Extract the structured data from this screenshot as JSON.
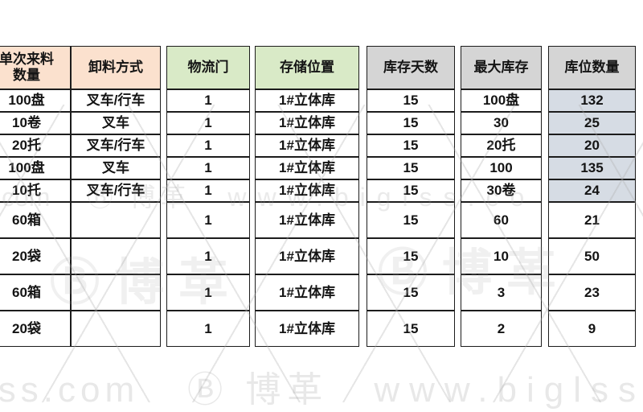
{
  "table": {
    "headers": [
      {
        "label": "单次来料\n数量",
        "bg": "#fbe1ce"
      },
      {
        "label": "卸料方式",
        "bg": "#fbe1ce"
      },
      {
        "label": "物流门",
        "bg": "#d9eac7"
      },
      {
        "label": "存储位置",
        "bg": "#d9eac7"
      },
      {
        "label": "库存天数",
        "bg": "#d5d5d5"
      },
      {
        "label": "最大库存",
        "bg": "#d5d5d5"
      },
      {
        "label": "库位数量",
        "bg": "#d5d5d5"
      }
    ],
    "highlight_bg": "#d6dce4",
    "border_color": "#1c1c1c"
  },
  "chart_data": {
    "type": "table",
    "title": "",
    "columns": [
      "单次来料数量",
      "卸料方式",
      "物流门",
      "存储位置",
      "库存天数",
      "最大库存",
      "库位数量"
    ],
    "rows": [
      [
        "100盘",
        "叉车/行车",
        "1",
        "1#立体库",
        "15",
        "100盘",
        "132"
      ],
      [
        "10卷",
        "叉车",
        "1",
        "1#立体库",
        "15",
        "30",
        "25"
      ],
      [
        "20托",
        "叉车/行车",
        "1",
        "1#立体库",
        "15",
        "20托",
        "20"
      ],
      [
        "100盘",
        "叉车",
        "1",
        "1#立体库",
        "15",
        "100",
        "135"
      ],
      [
        "10托",
        "叉车/行车",
        "1",
        "1#立体库",
        "15",
        "30卷",
        "24"
      ],
      [
        "60箱",
        "",
        "1",
        "1#立体库",
        "15",
        "60",
        "21"
      ],
      [
        "20袋",
        "",
        "1",
        "1#立体库",
        "15",
        "10",
        "50"
      ],
      [
        "60箱",
        "",
        "1",
        "1#立体库",
        "15",
        "3",
        "23"
      ],
      [
        "20袋",
        "",
        "1",
        "1#立体库",
        "15",
        "2",
        "9"
      ]
    ],
    "highlighted_cells": "库位数量 column rows 1-5 shaded blue-gray"
  },
  "watermark": {
    "partial_mid_left": "l.com",
    "partial_bottom_left": "lss.com",
    "logo_badge": "Ⓑ",
    "logo_text": "博革",
    "site_text": "www.biglss.com",
    "site_text_mid": "www.biglss.co"
  }
}
